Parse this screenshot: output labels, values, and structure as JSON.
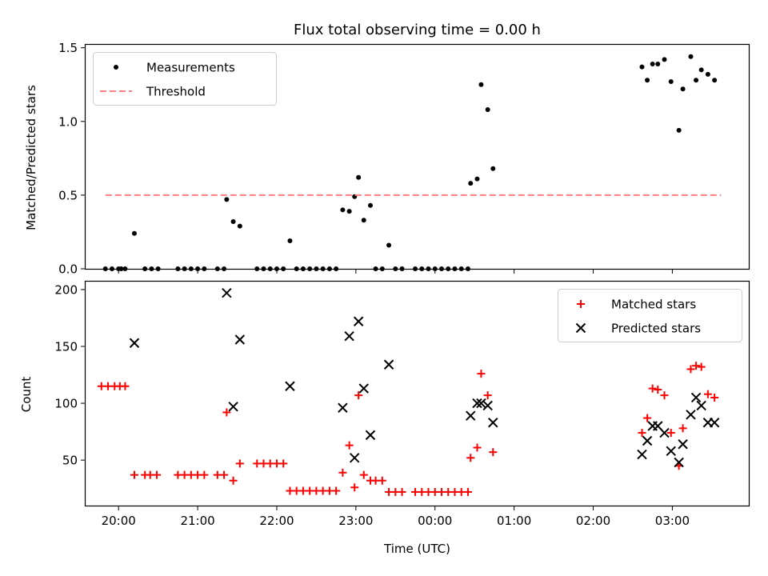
{
  "chart_data": [
    {
      "type": "scatter",
      "title": "Flux total observing time = 0.00 h",
      "ylabel": "Matched/Predicted stars",
      "xlabel": "",
      "xlim": [
        "19:35",
        "03:58"
      ],
      "ylim": [
        0,
        1.52
      ],
      "yticks": [
        0,
        0.5,
        1.0,
        1.5
      ],
      "ytick_labels": [
        "0.0",
        "0.5",
        "1.0",
        "1.5"
      ],
      "xticks": [
        "20:00",
        "21:00",
        "22:00",
        "23:00",
        "00:00",
        "01:00",
        "02:00",
        "03:00"
      ],
      "grid": false,
      "legend": "top-left",
      "series": [
        {
          "name": "Measurements",
          "marker": "dot",
          "color": "#000000",
          "points": [
            [
              "19:50",
              0
            ],
            [
              "19:55",
              0
            ],
            [
              "20:00",
              0
            ],
            [
              "20:02",
              0
            ],
            [
              "20:05",
              0
            ],
            [
              "20:12",
              0.24
            ],
            [
              "20:20",
              0
            ],
            [
              "20:25",
              0
            ],
            [
              "20:30",
              0
            ],
            [
              "20:45",
              0
            ],
            [
              "20:50",
              0
            ],
            [
              "20:55",
              0
            ],
            [
              "21:00",
              0
            ],
            [
              "21:05",
              0
            ],
            [
              "21:15",
              0
            ],
            [
              "21:20",
              0
            ],
            [
              "21:22",
              0.47
            ],
            [
              "21:27",
              0.32
            ],
            [
              "21:32",
              0.29
            ],
            [
              "21:45",
              0
            ],
            [
              "21:50",
              0
            ],
            [
              "21:55",
              0
            ],
            [
              "22:00",
              0
            ],
            [
              "22:05",
              0
            ],
            [
              "22:10",
              0.19
            ],
            [
              "22:15",
              0
            ],
            [
              "22:20",
              0
            ],
            [
              "22:25",
              0
            ],
            [
              "22:30",
              0
            ],
            [
              "22:35",
              0
            ],
            [
              "22:40",
              0
            ],
            [
              "22:45",
              0
            ],
            [
              "22:50",
              0.4
            ],
            [
              "22:55",
              0.39
            ],
            [
              "22:59",
              0.49
            ],
            [
              "23:02",
              0.62
            ],
            [
              "23:06",
              0.33
            ],
            [
              "23:11",
              0.43
            ],
            [
              "23:15",
              0
            ],
            [
              "23:20",
              0
            ],
            [
              "23:25",
              0.16
            ],
            [
              "23:30",
              0
            ],
            [
              "23:35",
              0
            ],
            [
              "23:45",
              0
            ],
            [
              "23:50",
              0
            ],
            [
              "23:55",
              0
            ],
            [
              "00:00",
              0
            ],
            [
              "00:05",
              0
            ],
            [
              "00:10",
              0
            ],
            [
              "00:15",
              0
            ],
            [
              "00:20",
              0
            ],
            [
              "00:25",
              0
            ],
            [
              "00:27",
              0.58
            ],
            [
              "00:32",
              0.61
            ],
            [
              "00:35",
              1.25
            ],
            [
              "00:40",
              1.08
            ],
            [
              "00:44",
              0.68
            ],
            [
              "02:37",
              1.37
            ],
            [
              "02:41",
              1.28
            ],
            [
              "02:45",
              1.39
            ],
            [
              "02:49",
              1.39
            ],
            [
              "02:54",
              1.42
            ],
            [
              "02:59",
              1.27
            ],
            [
              "03:05",
              0.94
            ],
            [
              "03:08",
              1.22
            ],
            [
              "03:14",
              1.44
            ],
            [
              "03:18",
              1.28
            ],
            [
              "03:22",
              1.35
            ],
            [
              "03:27",
              1.32
            ],
            [
              "03:32",
              1.28
            ]
          ]
        },
        {
          "name": "Threshold",
          "marker": "dashed-line",
          "color": "#ff7f7f",
          "points": [
            [
              "19:50",
              0.5
            ],
            [
              "03:37",
              0.5
            ]
          ]
        }
      ]
    },
    {
      "type": "scatter",
      "title": "",
      "ylabel": "Count",
      "xlabel": "Time (UTC)",
      "xlim": [
        "19:35",
        "03:58"
      ],
      "ylim": [
        10,
        207
      ],
      "yticks": [
        50,
        100,
        150,
        200
      ],
      "xticks": [
        "20:00",
        "21:00",
        "22:00",
        "23:00",
        "00:00",
        "01:00",
        "02:00",
        "03:00"
      ],
      "grid": false,
      "legend": "top-right",
      "series": [
        {
          "name": "Matched stars",
          "marker": "plus",
          "color": "#ff0000",
          "points": [
            [
              "19:47",
              115
            ],
            [
              "19:52",
              115
            ],
            [
              "19:57",
              115
            ],
            [
              "20:01",
              115
            ],
            [
              "20:05",
              115
            ],
            [
              "20:12",
              37
            ],
            [
              "20:20",
              37
            ],
            [
              "20:24",
              37
            ],
            [
              "20:29",
              37
            ],
            [
              "20:45",
              37
            ],
            [
              "20:50",
              37
            ],
            [
              "20:55",
              37
            ],
            [
              "21:00",
              37
            ],
            [
              "21:05",
              37
            ],
            [
              "21:15",
              37
            ],
            [
              "21:20",
              37
            ],
            [
              "21:22",
              92
            ],
            [
              "21:27",
              32
            ],
            [
              "21:32",
              47
            ],
            [
              "21:45",
              47
            ],
            [
              "21:50",
              47
            ],
            [
              "21:55",
              47
            ],
            [
              "22:00",
              47
            ],
            [
              "22:05",
              47
            ],
            [
              "22:10",
              23
            ],
            [
              "22:15",
              23
            ],
            [
              "22:20",
              23
            ],
            [
              "22:25",
              23
            ],
            [
              "22:30",
              23
            ],
            [
              "22:35",
              23
            ],
            [
              "22:40",
              23
            ],
            [
              "22:45",
              23
            ],
            [
              "22:50",
              39
            ],
            [
              "22:55",
              63
            ],
            [
              "22:59",
              26
            ],
            [
              "23:02",
              107
            ],
            [
              "23:06",
              37
            ],
            [
              "23:11",
              32
            ],
            [
              "23:15",
              32
            ],
            [
              "23:20",
              32
            ],
            [
              "23:25",
              22
            ],
            [
              "23:30",
              22
            ],
            [
              "23:35",
              22
            ],
            [
              "23:45",
              22
            ],
            [
              "23:50",
              22
            ],
            [
              "23:55",
              22
            ],
            [
              "00:00",
              22
            ],
            [
              "00:05",
              22
            ],
            [
              "00:10",
              22
            ],
            [
              "00:15",
              22
            ],
            [
              "00:20",
              22
            ],
            [
              "00:25",
              22
            ],
            [
              "00:27",
              52
            ],
            [
              "00:32",
              61
            ],
            [
              "00:35",
              126
            ],
            [
              "00:40",
              107
            ],
            [
              "00:44",
              57
            ],
            [
              "02:37",
              74
            ],
            [
              "02:41",
              87
            ],
            [
              "02:45",
              113
            ],
            [
              "02:49",
              112
            ],
            [
              "02:54",
              107
            ],
            [
              "02:59",
              74
            ],
            [
              "03:05",
              45
            ],
            [
              "03:08",
              78
            ],
            [
              "03:14",
              130
            ],
            [
              "03:18",
              133
            ],
            [
              "03:22",
              132
            ],
            [
              "03:27",
              108
            ],
            [
              "03:32",
              105
            ]
          ]
        },
        {
          "name": "Predicted stars",
          "marker": "x",
          "color": "#000000",
          "points": [
            [
              "20:12",
              153
            ],
            [
              "21:22",
              197
            ],
            [
              "21:27",
              97
            ],
            [
              "21:32",
              156
            ],
            [
              "22:10",
              115
            ],
            [
              "22:50",
              96
            ],
            [
              "22:55",
              159
            ],
            [
              "22:59",
              52
            ],
            [
              "23:02",
              172
            ],
            [
              "23:06",
              113
            ],
            [
              "23:11",
              72
            ],
            [
              "23:25",
              134
            ],
            [
              "00:27",
              89
            ],
            [
              "00:32",
              100
            ],
            [
              "00:35",
              100
            ],
            [
              "00:40",
              98
            ],
            [
              "00:44",
              83
            ],
            [
              "02:37",
              55
            ],
            [
              "02:41",
              67
            ],
            [
              "02:45",
              80
            ],
            [
              "02:49",
              80
            ],
            [
              "02:54",
              74
            ],
            [
              "02:59",
              58
            ],
            [
              "03:05",
              48
            ],
            [
              "03:08",
              64
            ],
            [
              "03:14",
              90
            ],
            [
              "03:18",
              105
            ],
            [
              "03:22",
              98
            ],
            [
              "03:27",
              83
            ],
            [
              "03:32",
              83
            ]
          ]
        }
      ]
    }
  ]
}
